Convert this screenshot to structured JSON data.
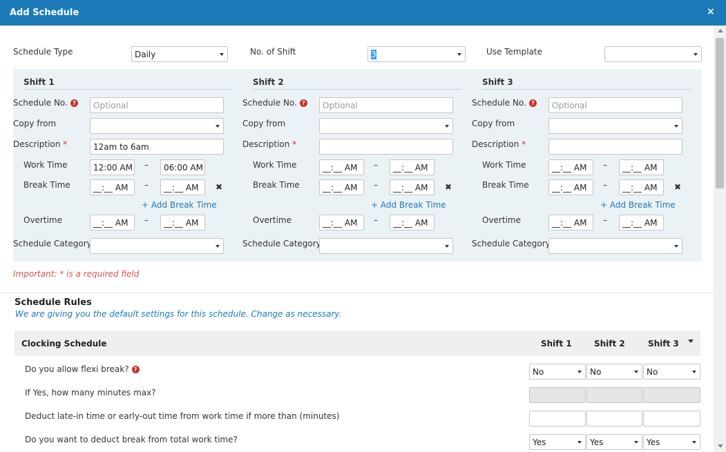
{
  "dialog": {
    "title": "Add Schedule",
    "close": "×"
  },
  "top": {
    "schedule_type_label": "Schedule Type",
    "schedule_type_value": "Daily",
    "no_of_shift_label": "No. of Shift",
    "no_of_shift_value": "3",
    "use_template_label": "Use Template",
    "use_template_value": ""
  },
  "labels": {
    "schedule_no": "Schedule No.",
    "copy_from": "Copy from",
    "description": "Description",
    "required_mark": "*",
    "work_time": "Work Time",
    "break_time": "Break Time",
    "add_break_time": "+ Add Break Time",
    "overtime": "Overtime",
    "schedule_category": "Schedule Category",
    "dash": "–",
    "remove": "✖",
    "help": "?"
  },
  "shifts": [
    {
      "title": "Shift 1",
      "schedule_no_placeholder": "Optional",
      "copy_from": "",
      "description": "12am to 6am",
      "work_from": "12:00 AM",
      "work_to": "06:00 AM",
      "break_from": "__:__ AM",
      "break_to": "__:__ AM",
      "ot_from": "__:__ AM",
      "ot_to": "__:__ AM",
      "category": ""
    },
    {
      "title": "Shift 2",
      "schedule_no_placeholder": "Optional",
      "copy_from": "",
      "description": "",
      "work_from": "__:__ AM",
      "work_to": "__:__ AM",
      "break_from": "__:__ AM",
      "break_to": "__:__ AM",
      "ot_from": "__:__ AM",
      "ot_to": "__:__ AM",
      "category": ""
    },
    {
      "title": "Shift 3",
      "schedule_no_placeholder": "Optional",
      "copy_from": "",
      "description": "",
      "work_from": "__:__ AM",
      "work_to": "__:__ AM",
      "break_from": "__:__ AM",
      "break_to": "__:__ AM",
      "ot_from": "__:__ AM",
      "ot_to": "__:__ AM",
      "category": ""
    }
  ],
  "important_note": "Important: * is a required field",
  "rules": {
    "title": "Schedule Rules",
    "subtitle": "We are giving you the default settings for this schedule. Change as necessary.",
    "header": {
      "section": "Clocking Schedule",
      "shift1": "Shift 1",
      "shift2": "Shift 2",
      "shift3": "Shift 3"
    },
    "rows": [
      {
        "question": "Do you allow flexi break?",
        "type": "select",
        "values": [
          "No",
          "No",
          "No"
        ]
      },
      {
        "question": "If Yes, how many minutes max?",
        "type": "disabled",
        "values": [
          "",
          "",
          ""
        ]
      },
      {
        "question": "Deduct late-in time or early-out time from work time if more than (minutes)",
        "type": "input",
        "values": [
          "",
          "",
          ""
        ]
      },
      {
        "question": "Do you want to deduct break from total work time?",
        "type": "select",
        "values": [
          "Yes",
          "Yes",
          "Yes"
        ]
      }
    ]
  },
  "colors": {
    "title_bar": "#1c7ab8",
    "required": "#c9302c",
    "link": "#1c7ab8",
    "panel": "#ebf2f6"
  }
}
